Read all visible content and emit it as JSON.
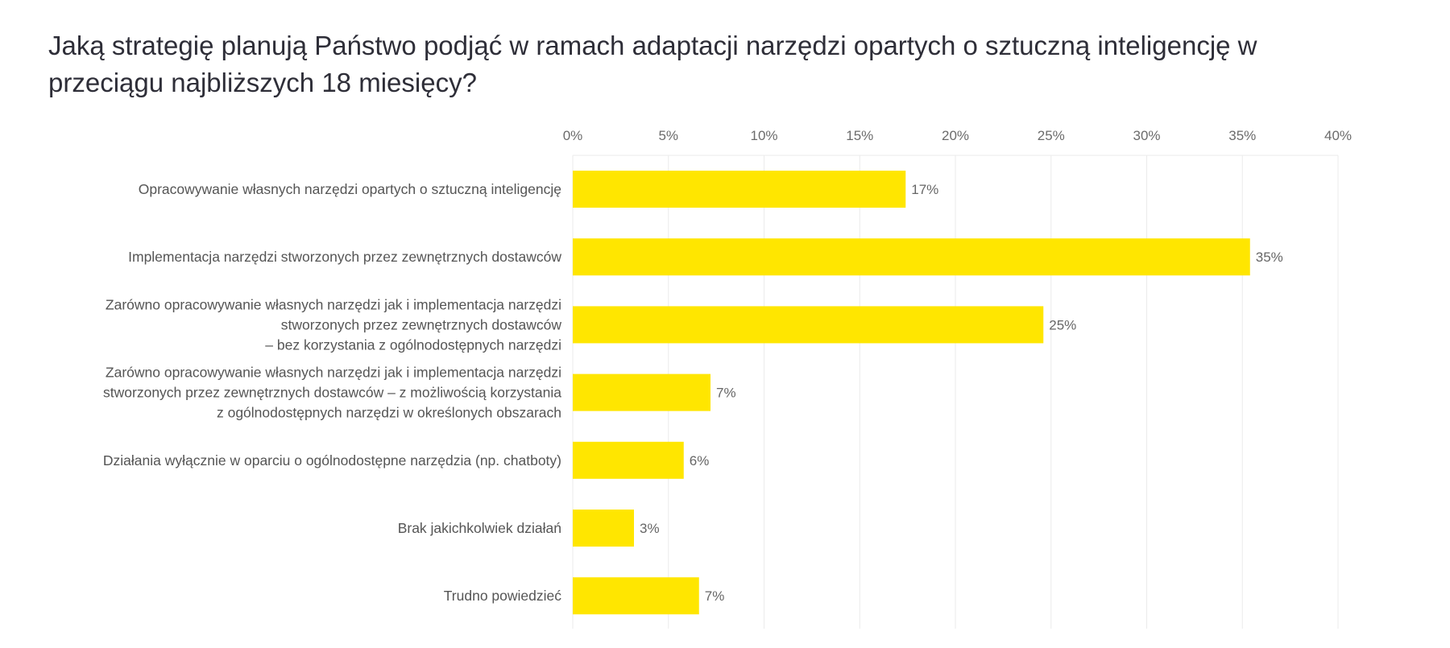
{
  "chart_data": {
    "type": "bar",
    "orientation": "horizontal",
    "title": "Jaką strategię planują Państwo podjąć w ramach adaptacji narzędzi opartych o sztuczną inteligencję w przeciągu najbliższych 18 miesięcy?",
    "categories": [
      [
        "Opracowywanie własnych narzędzi opartych o sztuczną inteligencję"
      ],
      [
        "Implementacja narzędzi stworzonych przez zewnętrznych dostawców"
      ],
      [
        "Zarówno opracowywanie własnych narzędzi jak i implementacja narzędzi",
        "stworzonych przez zewnętrznych dostawców",
        "– bez korzystania z ogólnodostępnych narzędzi"
      ],
      [
        "Zarówno opracowywanie własnych narzędzi jak i implementacja narzędzi",
        "stworzonych przez zewnętrznych dostawców – z możliwością korzystania",
        "z ogólnodostępnych narzędzi w określonych obszarach"
      ],
      [
        "Działania wyłącznie w oparciu o ogólnodostępne narzędzia (np. chatboty)"
      ],
      [
        "Brak jakichkolwiek działań"
      ],
      [
        "Trudno powiedzieć"
      ]
    ],
    "values": [
      17.4,
      35.4,
      24.6,
      7.2,
      5.8,
      3.2,
      6.6
    ],
    "data_labels": [
      "17%",
      "35%",
      "25%",
      "7%",
      "6%",
      "3%",
      "7%"
    ],
    "xlim": [
      0,
      40
    ],
    "xticks": [
      0,
      5,
      10,
      15,
      20,
      25,
      30,
      35,
      40
    ],
    "xtick_labels": [
      "0%",
      "5%",
      "10%",
      "15%",
      "20%",
      "25%",
      "30%",
      "35%",
      "40%"
    ],
    "axis_position": "top",
    "grid": true,
    "xlabel": "",
    "ylabel": "",
    "colors": {
      "bar": "#FFE600",
      "grid": "#ebebeb"
    }
  }
}
